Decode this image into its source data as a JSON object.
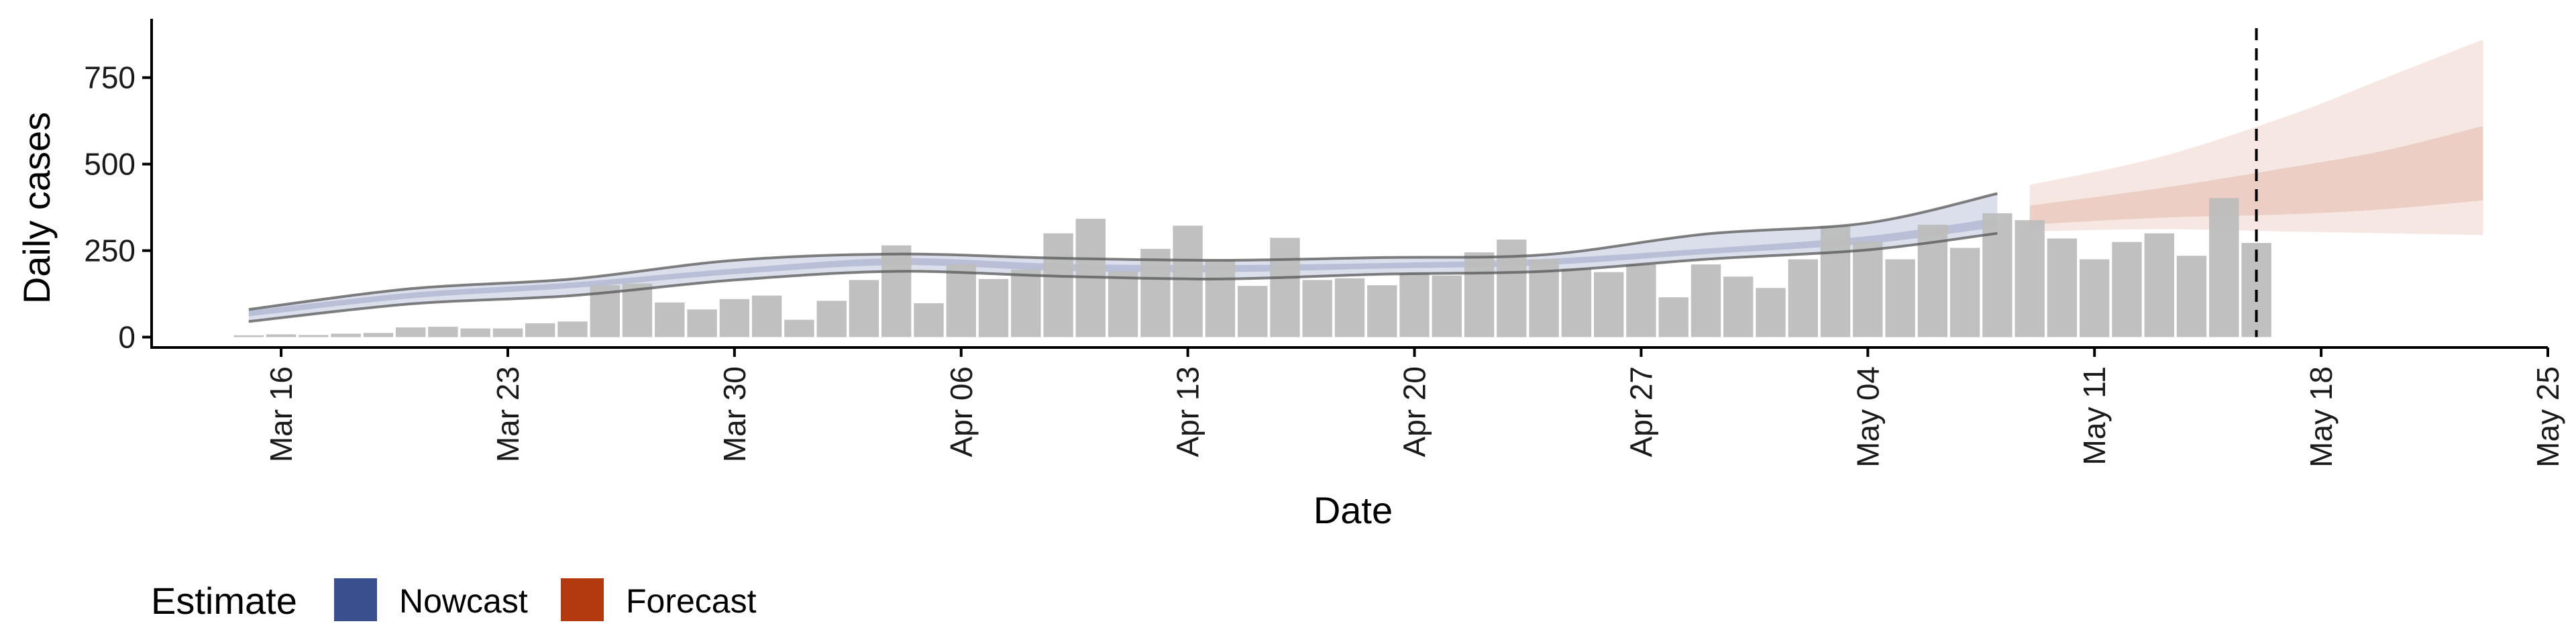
{
  "chart_data": {
    "type": "bar",
    "xlabel": "Date",
    "ylabel": "Daily cases",
    "xlim": [
      "2020-03-12",
      "2020-05-25"
    ],
    "ylim": [
      -30,
      920
    ],
    "y_ticks": [
      0,
      250,
      500,
      750
    ],
    "y_tick_labels": [
      "0",
      "250",
      "500",
      "750"
    ],
    "x_ticks": [
      "2020-03-16",
      "2020-03-23",
      "2020-03-30",
      "2020-04-06",
      "2020-04-13",
      "2020-04-20",
      "2020-04-27",
      "2020-05-04",
      "2020-05-11",
      "2020-05-18",
      "2020-05-25"
    ],
    "x_tick_labels": [
      "Mar 16",
      "Mar 23",
      "Mar 30",
      "Apr 06",
      "Apr 13",
      "Apr 20",
      "Apr 27",
      "May 04",
      "May 11",
      "May 18",
      "May 25"
    ],
    "grid": false,
    "bar_color": "#bdbdbd",
    "bars": {
      "dates": [
        "2020-03-15",
        "2020-03-16",
        "2020-03-17",
        "2020-03-18",
        "2020-03-19",
        "2020-03-20",
        "2020-03-21",
        "2020-03-22",
        "2020-03-23",
        "2020-03-24",
        "2020-03-25",
        "2020-03-26",
        "2020-03-27",
        "2020-03-28",
        "2020-03-29",
        "2020-03-30",
        "2020-03-31",
        "2020-04-01",
        "2020-04-02",
        "2020-04-03",
        "2020-04-04",
        "2020-04-05",
        "2020-04-06",
        "2020-04-07",
        "2020-04-08",
        "2020-04-09",
        "2020-04-10",
        "2020-04-11",
        "2020-04-12",
        "2020-04-13",
        "2020-04-14",
        "2020-04-15",
        "2020-04-16",
        "2020-04-17",
        "2020-04-18",
        "2020-04-19",
        "2020-04-20",
        "2020-04-21",
        "2020-04-22",
        "2020-04-23",
        "2020-04-24",
        "2020-04-25",
        "2020-04-26",
        "2020-04-27",
        "2020-04-28",
        "2020-04-29",
        "2020-04-30",
        "2020-05-01",
        "2020-05-02",
        "2020-05-03",
        "2020-05-04",
        "2020-05-05",
        "2020-05-06",
        "2020-05-07",
        "2020-05-08",
        "2020-05-09",
        "2020-05-10",
        "2020-05-11",
        "2020-05-12",
        "2020-05-13",
        "2020-05-14",
        "2020-05-15",
        "2020-05-16"
      ],
      "values": [
        5,
        8,
        6,
        10,
        12,
        28,
        30,
        25,
        25,
        40,
        45,
        150,
        155,
        100,
        80,
        110,
        120,
        50,
        105,
        165,
        265,
        98,
        210,
        168,
        195,
        300,
        342,
        190,
        255,
        322,
        222,
        148,
        287,
        165,
        170,
        150,
        185,
        178,
        245,
        282,
        225,
        198,
        188,
        210,
        115,
        210,
        175,
        142,
        225,
        320,
        275,
        225,
        325,
        258,
        358,
        338,
        285,
        225,
        275,
        300,
        235,
        402,
        272
      ]
    },
    "nowcast": {
      "name": "Nowcast",
      "color": "#3a4f8e",
      "x": [
        "2020-03-15",
        "2020-03-20",
        "2020-03-25",
        "2020-03-30",
        "2020-04-04",
        "2020-04-09",
        "2020-04-14",
        "2020-04-19",
        "2020-04-24",
        "2020-04-29",
        "2020-05-04",
        "2020-05-08"
      ],
      "median": [
        68,
        120,
        150,
        190,
        218,
        202,
        198,
        206,
        218,
        248,
        280,
        328
      ],
      "lower_90": [
        45,
        96,
        120,
        165,
        190,
        176,
        168,
        182,
        190,
        225,
        252,
        300
      ],
      "upper_90": [
        80,
        140,
        168,
        222,
        240,
        228,
        222,
        230,
        238,
        298,
        330,
        415
      ],
      "lower_50": [
        60,
        112,
        142,
        182,
        208,
        192,
        188,
        198,
        208,
        240,
        270,
        318
      ],
      "upper_50": [
        76,
        128,
        158,
        198,
        228,
        212,
        208,
        214,
        226,
        256,
        292,
        345
      ]
    },
    "forecast": {
      "name": "Forecast",
      "color": "#b23a0e",
      "x": [
        "2020-05-09",
        "2020-05-13",
        "2020-05-17",
        "2020-05-20",
        "2020-05-23"
      ],
      "lower_90": [
        305,
        312,
        305,
        300,
        295
      ],
      "upper_90": [
        440,
        520,
        640,
        750,
        860
      ],
      "lower_50": [
        325,
        345,
        355,
        370,
        395
      ],
      "upper_50": [
        380,
        430,
        490,
        540,
        610
      ]
    },
    "forecast_start_line": "2020-05-16",
    "legend": {
      "title": "Estimate",
      "position": "bottom-left",
      "entries": [
        {
          "label": "Nowcast",
          "color": "#3a4f8e"
        },
        {
          "label": "Forecast",
          "color": "#b23a0e"
        }
      ]
    }
  }
}
